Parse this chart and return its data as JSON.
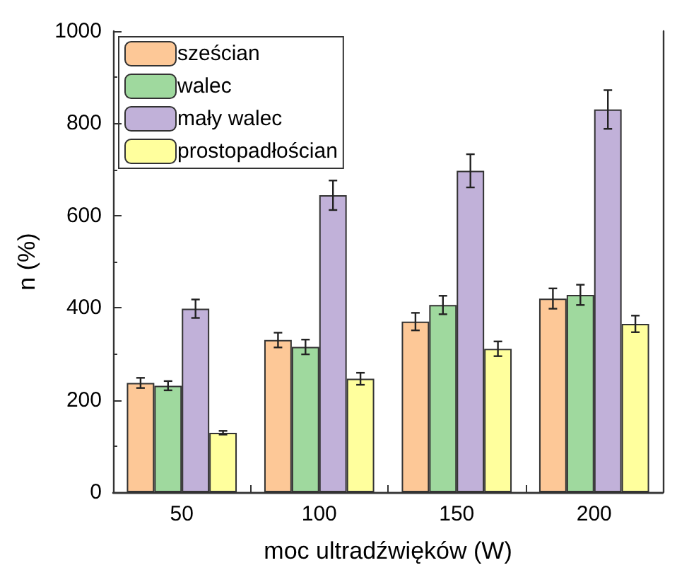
{
  "chart_data": {
    "type": "bar",
    "xlabel": "moc ultradźwięków (W)",
    "ylabel": "n (%)",
    "categories": [
      "50",
      "100",
      "150",
      "200"
    ],
    "series": [
      {
        "name": "sześcian",
        "color": "#fdc897",
        "values": [
          237,
          330,
          370,
          420
        ],
        "errors": [
          11,
          16,
          19,
          22
        ]
      },
      {
        "name": "walec",
        "color": "#9fd99e",
        "values": [
          231,
          315,
          406,
          428
        ],
        "errors": [
          10,
          16,
          20,
          22
        ]
      },
      {
        "name": "mały walec",
        "color": "#c1b1d9",
        "values": [
          398,
          644,
          697,
          830
        ],
        "errors": [
          20,
          32,
          36,
          42
        ]
      },
      {
        "name": "prostopadłościan",
        "color": "#ffff9d",
        "values": [
          129,
          246,
          311,
          365
        ],
        "errors": [
          4,
          13,
          16,
          18
        ]
      }
    ],
    "ylim": [
      0,
      1000
    ],
    "yticks": [
      0,
      200,
      400,
      600,
      800,
      1000
    ],
    "grid": false,
    "legend": "top left"
  }
}
